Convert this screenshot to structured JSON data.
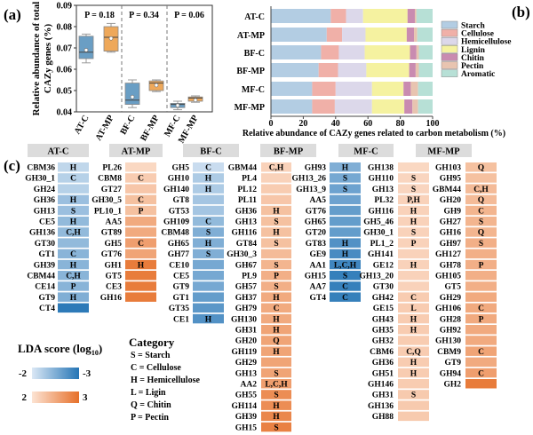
{
  "chart_data": [
    {
      "panel": "(a)",
      "type": "box",
      "ylabel_lines": [
        "Relative abundance of total",
        "CAZy genes (%)"
      ],
      "ylim": [
        0.04,
        0.09
      ],
      "yticks": [
        "0.04",
        "0.05",
        "0.06",
        "0.07",
        "0.08",
        "0.09"
      ],
      "categories": [
        "AT-C",
        "AT-MP",
        "BF-C",
        "BF-MP",
        "MF-C",
        "MF-MP"
      ],
      "colors": {
        "C": "#6a9ec4",
        "MP": "#eea85a"
      },
      "boxes": [
        {
          "min": 0.063,
          "q1": 0.065,
          "median": 0.068,
          "q3": 0.0755,
          "max": 0.0765,
          "mean": 0.069
        },
        {
          "min": 0.068,
          "q1": 0.0685,
          "median": 0.075,
          "q3": 0.08,
          "max": 0.0815,
          "mean": 0.0745
        },
        {
          "min": 0.042,
          "q1": 0.0435,
          "median": 0.0455,
          "q3": 0.0535,
          "max": 0.055,
          "mean": 0.047
        },
        {
          "min": 0.0495,
          "q1": 0.05,
          "median": 0.0535,
          "q3": 0.0545,
          "max": 0.055,
          "mean": 0.0525
        },
        {
          "min": 0.041,
          "q1": 0.042,
          "median": 0.0435,
          "q3": 0.044,
          "max": 0.045,
          "mean": 0.043
        },
        {
          "min": 0.0445,
          "q1": 0.045,
          "median": 0.0465,
          "q3": 0.047,
          "max": 0.0475,
          "mean": 0.0455
        }
      ],
      "p_values": [
        "P = 0.18",
        "P = 0.34",
        "P = 0.06"
      ]
    },
    {
      "panel": "(b)",
      "type": "stacked-bar-horizontal",
      "xlabel": "Relative abundance of  CAZy genes related to carbon metabolism (%)",
      "xlim": [
        0,
        100
      ],
      "xticks": [
        "0",
        "20",
        "40",
        "60",
        "80",
        "100"
      ],
      "categories": [
        "AT-C",
        "AT-MP",
        "BF-C",
        "BF-MP",
        "MF-C",
        "MF-MP"
      ],
      "legend_position": "right",
      "series": [
        {
          "name": "Starch",
          "color": "#b3cde3",
          "values": [
            37,
            34.5,
            31,
            29.5,
            25.5,
            25.5
          ]
        },
        {
          "name": "Cellulose",
          "color": "#f0b0a8",
          "values": [
            9.5,
            9.5,
            11,
            12,
            14.5,
            14
          ]
        },
        {
          "name": "Hemicellulose",
          "color": "#dcd8ea",
          "values": [
            10.5,
            14.5,
            16,
            17.5,
            22.5,
            23
          ]
        },
        {
          "name": "Lignin",
          "color": "#f5f2a0",
          "values": [
            27.5,
            25.5,
            28,
            26.5,
            19.5,
            20
          ]
        },
        {
          "name": "Chitin",
          "color": "#c98bb0",
          "values": [
            4.5,
            4.5,
            4,
            4,
            4.5,
            5
          ]
        },
        {
          "name": "Pectin",
          "color": "#e8c4b0",
          "values": [
            1,
            2,
            1.5,
            2,
            4.5,
            3.5
          ]
        },
        {
          "name": "Aromatic",
          "color": "#b7e0d6",
          "values": [
            10,
            9.5,
            8.5,
            8.5,
            9,
            9
          ]
        }
      ]
    },
    {
      "panel": "(c)",
      "type": "heatmap",
      "groups": [
        "AT-C",
        "AT-MP",
        "BF-C",
        "BF-MP",
        "MF-C",
        "MF-MP"
      ],
      "color_scale": {
        "negative": [
          "#dbe8f5",
          "#2474b5"
        ],
        "positive": [
          "#fce3d3",
          "#e6702a"
        ]
      },
      "columns": [
        {
          "group": "AT-C",
          "rows": [
            [
              "CBM36",
              "H",
              -2.15
            ],
            [
              "GH30_1",
              "C",
              -2.2
            ],
            [
              "GH24",
              "",
              -2.2
            ],
            [
              "GH36",
              "H",
              -2.35
            ],
            [
              "GH13",
              "S",
              -2.35
            ],
            [
              "CE5",
              "H",
              -2.4
            ],
            [
              "GH136",
              "C,H",
              -2.4
            ],
            [
              "GT30",
              "",
              -2.4
            ],
            [
              "GT1",
              "C",
              -2.45
            ],
            [
              "GH39",
              "H",
              -2.45
            ],
            [
              "CBM44",
              "C,H",
              -2.45
            ],
            [
              "CE14",
              "P",
              -2.45
            ],
            [
              "GT9",
              "H",
              -2.5
            ],
            [
              "CT4",
              "",
              -2.95
            ]
          ]
        },
        {
          "group": "AT-MP",
          "rows": [
            [
              "PL26",
              "",
              2.1
            ],
            [
              "CBM8",
              "C",
              2.2
            ],
            [
              "GT27",
              "",
              2.25
            ],
            [
              "GH30_5",
              "C",
              2.3
            ],
            [
              "PL10_1",
              "P",
              2.3
            ],
            [
              "AA5",
              "",
              2.5
            ],
            [
              "GT89",
              "",
              2.5
            ],
            [
              "GH5",
              "C",
              2.6
            ],
            [
              "GT76",
              "",
              2.55
            ],
            [
              "GH1",
              "H",
              2.9
            ],
            [
              "GT5",
              "",
              2.9
            ],
            [
              "CE3",
              "",
              2.9
            ],
            [
              "GH16",
              "",
              2.9
            ]
          ]
        },
        {
          "group": "BF-C",
          "rows": [
            [
              "GH5",
              "C",
              -2.1
            ],
            [
              "GH10",
              "H",
              -2.25
            ],
            [
              "GH140",
              "H",
              -2.25
            ],
            [
              "GT8",
              "",
              -2.3
            ],
            [
              "GT53",
              "",
              -2.3
            ],
            [
              "GH109",
              "C",
              -2.4
            ],
            [
              "CBM48",
              "S",
              -2.5
            ],
            [
              "GH65",
              "H",
              -2.5
            ],
            [
              "GH77",
              "S",
              -2.5
            ],
            [
              "CE10",
              "",
              -2.55
            ],
            [
              "CE5",
              "",
              -2.55
            ],
            [
              "GT9",
              "",
              -2.55
            ],
            [
              "GT1",
              "",
              -2.65
            ],
            [
              "GT35",
              "",
              -2.7
            ],
            [
              "CE1",
              "H",
              -2.75
            ]
          ]
        },
        {
          "group": "BF-MP",
          "rows": [
            [
              "GBM44",
              "C,H",
              2.15
            ],
            [
              "PL4",
              "",
              2.15
            ],
            [
              "PL12",
              "",
              2.2
            ],
            [
              "PL11",
              "",
              2.25
            ],
            [
              "GH36",
              "H",
              2.3
            ],
            [
              "GH13",
              "S",
              2.3
            ],
            [
              "GH116",
              "H",
              2.3
            ],
            [
              "GT84",
              "S",
              2.3
            ],
            [
              "GH30_3",
              "",
              2.35
            ],
            [
              "GH67",
              "S",
              2.4
            ],
            [
              "PL9",
              "P",
              2.45
            ],
            [
              "GH57",
              "S",
              2.45
            ],
            [
              "GH37",
              "H",
              2.5
            ],
            [
              "GH79",
              "C",
              2.5
            ],
            [
              "GH130",
              "H",
              2.5
            ],
            [
              "GH31",
              "H",
              2.55
            ],
            [
              "GH20",
              "Q",
              2.55
            ],
            [
              "GH119",
              "H",
              2.55
            ],
            [
              "GH29",
              "",
              2.55
            ],
            [
              "GH13",
              "S",
              2.55
            ],
            [
              "AA2",
              "L,C,H",
              2.6
            ],
            [
              "GH55",
              "S",
              2.75
            ],
            [
              "GH114",
              "H",
              2.75
            ],
            [
              "GH39",
              "H",
              2.8
            ],
            [
              "GH15",
              "S",
              2.85
            ]
          ]
        },
        {
          "group": "MF-C",
          "rows": [
            [
              "GH93",
              "H",
              -2.5
            ],
            [
              "GH13_26",
              "S",
              -2.55
            ],
            [
              "GH13_9",
              "S",
              -2.6
            ],
            [
              "AA5",
              "",
              -2.6
            ],
            [
              "GT76",
              "",
              -2.65
            ],
            [
              "GH65",
              "",
              -2.65
            ],
            [
              "GT20",
              "",
              -2.65
            ],
            [
              "GT83",
              "H",
              -2.75
            ],
            [
              "GE9",
              "H",
              -2.8
            ],
            [
              "AA1",
              "L,C,H",
              -2.85
            ],
            [
              "GH15",
              "S",
              -2.9
            ],
            [
              "AA7",
              "C",
              -2.9
            ],
            [
              "GT4",
              "C",
              -2.9
            ]
          ]
        },
        {
          "group": "MF-MP",
          "rows": [
            [
              "GH138",
              "",
              2.1
            ],
            [
              "GH110",
              "S",
              2.12
            ],
            [
              "GH13",
              "S",
              2.12
            ],
            [
              "PL32",
              "P,H",
              2.15
            ],
            [
              "GH116",
              "H",
              2.15
            ],
            [
              "GH5_46",
              "H",
              2.15
            ],
            [
              "GH30_1",
              "S",
              2.15
            ],
            [
              "PL1_2",
              "P",
              2.15
            ],
            [
              "GH141",
              "",
              2.15
            ],
            [
              "GE12",
              "H",
              2.15
            ],
            [
              "GH13_20",
              "",
              2.15
            ],
            [
              "GT30",
              "",
              2.15
            ],
            [
              "GH42",
              "C",
              2.2
            ],
            [
              "GE15",
              "L",
              2.2
            ],
            [
              "GH43",
              "H",
              2.2
            ],
            [
              "GH35",
              "H",
              2.2
            ],
            [
              "GH32",
              "",
              2.2
            ],
            [
              "CBM6",
              "C,Q",
              2.2
            ],
            [
              "GH36",
              "H",
              2.2
            ],
            [
              "GH51",
              "H",
              2.2
            ],
            [
              "GH146",
              "",
              2.2
            ],
            [
              "GH31",
              "S",
              2.22
            ],
            [
              "GH136",
              "",
              2.22
            ],
            [
              "GH88",
              "",
              2.22
            ]
          ]
        },
        {
          "group": "MF-MP",
          "rows": [
            [
              "GH103",
              "Q",
              2.3
            ],
            [
              "GH95",
              "",
              2.3
            ],
            [
              "GBM44",
              "C,H",
              2.35
            ],
            [
              "GH20",
              "Q",
              2.35
            ],
            [
              "GH9",
              "C",
              2.4
            ],
            [
              "GH27",
              "S",
              2.4
            ],
            [
              "GH16",
              "Q",
              2.4
            ],
            [
              "GH97",
              "S",
              2.45
            ],
            [
              "GH127",
              "",
              2.45
            ],
            [
              "GH78",
              "P",
              2.45
            ],
            [
              "GH105",
              "",
              2.45
            ],
            [
              "GT5",
              "",
              2.45
            ],
            [
              "GH29",
              "",
              2.5
            ],
            [
              "GH106",
              "C",
              2.5
            ],
            [
              "GH28",
              "P",
              2.5
            ],
            [
              "GH92",
              "",
              2.5
            ],
            [
              "GH130",
              "",
              2.5
            ],
            [
              "CBM9",
              "C",
              2.55
            ],
            [
              "GT9",
              "",
              2.5
            ],
            [
              "GH94",
              "C",
              2.6
            ],
            [
              "GH2",
              "",
              2.9
            ]
          ]
        }
      ],
      "lda_legend": {
        "title": "LDA score (log",
        "subscript": "10",
        "close": ")",
        "neg_low": "-2",
        "neg_high": "-3",
        "pos_low": "2",
        "pos_high": "3"
      },
      "category_legend": {
        "title": "Category",
        "items": [
          "S = Starch",
          "C = Cellulose",
          "H = Hemicellulose",
          "L = Ligin",
          "Q = Chitin",
          "P = Pectin"
        ]
      }
    }
  ]
}
